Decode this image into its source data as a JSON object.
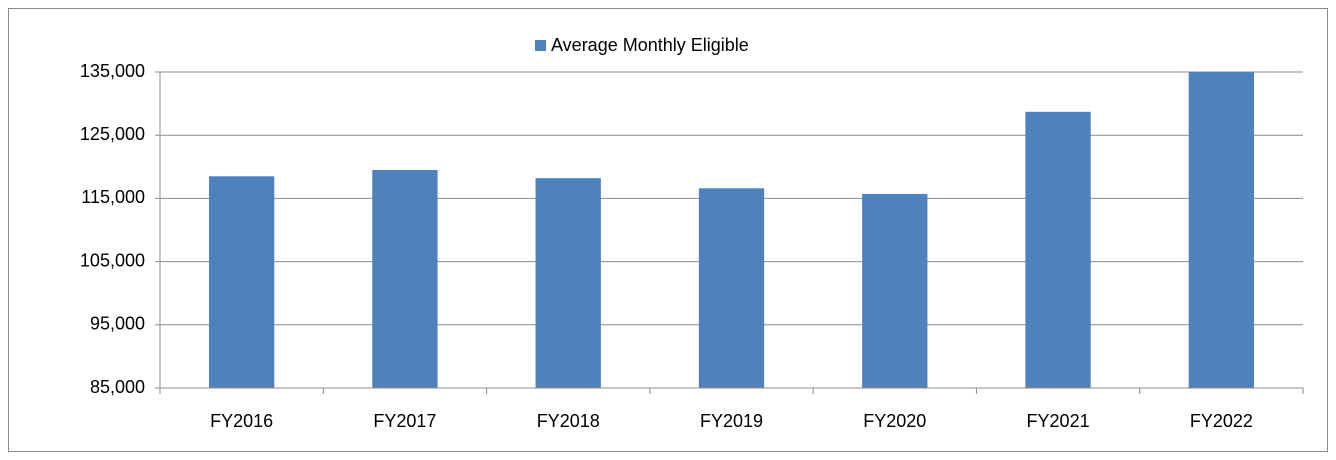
{
  "chart_data": {
    "type": "bar",
    "legend": "top",
    "categories": [
      "FY2016",
      "FY2017",
      "FY2018",
      "FY2019",
      "FY2020",
      "FY2021",
      "FY2022"
    ],
    "series": [
      {
        "name": "Average Monthly Eligible",
        "color": "#4f81bd",
        "values": [
          118500,
          119500,
          118200,
          116600,
          115700,
          128700,
          135000
        ]
      }
    ],
    "ylim": [
      85000,
      135000
    ],
    "yticks": [
      {
        "value": 85000,
        "label": "85,000"
      },
      {
        "value": 95000,
        "label": "95,000"
      },
      {
        "value": 105000,
        "label": "105,000"
      },
      {
        "value": 115000,
        "label": "115,000"
      },
      {
        "value": 125000,
        "label": "125,000"
      },
      {
        "value": 135000,
        "label": "135,000"
      }
    ],
    "grid": true
  }
}
